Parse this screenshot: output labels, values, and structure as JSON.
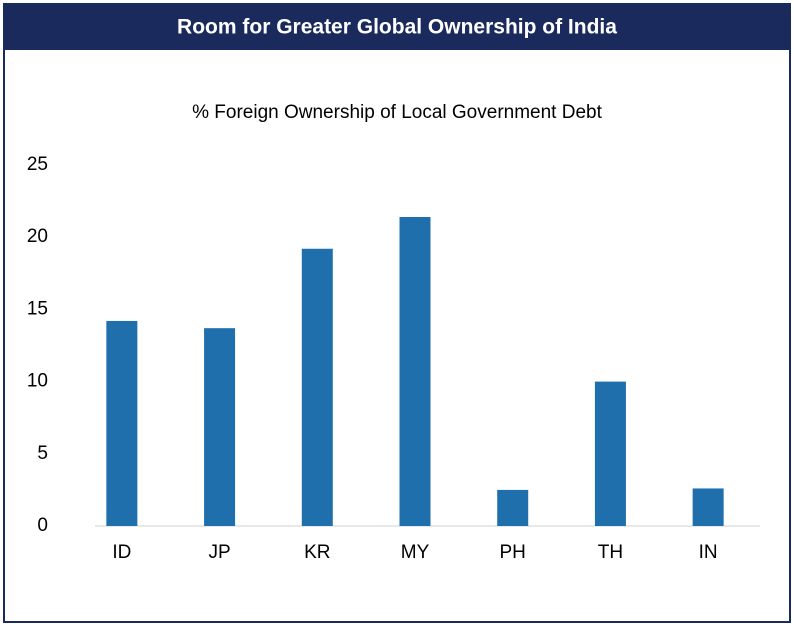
{
  "chart_data": {
    "type": "bar",
    "title": "Room for Greater Global Ownership of India",
    "subtitle": "% Foreign Ownership of Local Government Debt",
    "categories": [
      "ID",
      "JP",
      "KR",
      "MY",
      "PH",
      "TH",
      "IN"
    ],
    "values": [
      14.2,
      13.7,
      19.2,
      21.4,
      2.5,
      10.0,
      2.6
    ],
    "color": "#1f6fad",
    "ylim": [
      0,
      25
    ],
    "yticks": [
      0,
      5,
      10,
      15,
      20,
      25
    ],
    "grid": false
  }
}
